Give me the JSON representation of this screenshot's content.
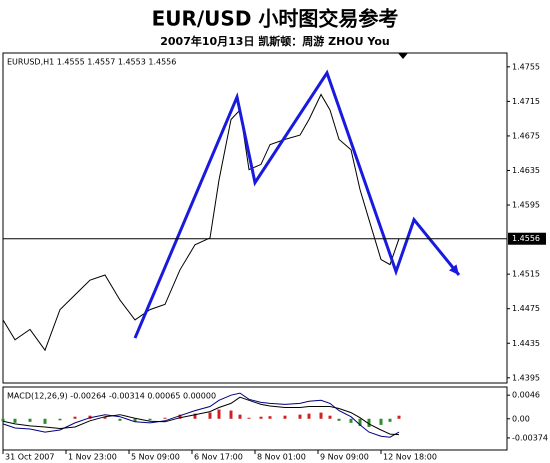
{
  "header": {
    "title": "EUR/USD 小时图交易参考",
    "subtitle": "2007年10月13日  凯斯顿：周游 ZHOU You"
  },
  "chart_data": [
    {
      "type": "line",
      "title": "EURUSD,H1  1.4555 1.4557 1.4553 1.4556",
      "x": [
        0,
        4,
        9,
        14,
        19,
        24,
        29,
        34,
        39,
        44,
        49,
        54,
        59,
        64,
        69,
        72,
        76,
        79,
        82,
        86,
        89,
        94,
        99,
        102,
        106,
        109,
        112,
        116,
        119,
        122,
        126,
        129,
        132
      ],
      "series": [
        {
          "color": "#000000",
          "values": [
            1.4462,
            1.4439,
            1.4451,
            1.4427,
            1.4474,
            1.4491,
            1.4508,
            1.4514,
            1.4485,
            1.4462,
            1.4474,
            1.448,
            1.452,
            1.4549,
            1.4557,
            1.4624,
            1.4694,
            1.4705,
            1.4636,
            1.4642,
            1.4665,
            1.4671,
            1.4676,
            1.4694,
            1.4723,
            1.4705,
            1.4671,
            1.4659,
            1.4613,
            1.4578,
            1.4532,
            1.4526,
            1.4556
          ]
        },
        {
          "color": "#1a1adf",
          "x": [
            44,
            78,
            84,
            108,
            131,
            137,
            152
          ],
          "values": [
            1.4441,
            1.472,
            1.4621,
            1.4748,
            1.4518,
            1.4578,
            1.4514
          ]
        }
      ],
      "current_price": 1.4556,
      "xlim": [
        0,
        168
      ],
      "ylim": [
        1.4389,
        1.4771
      ],
      "yticks": [
        1.4755,
        1.4715,
        1.4675,
        1.4635,
        1.4595,
        1.4515,
        1.4475,
        1.4435,
        1.4395
      ],
      "xticks": [
        {
          "value": 0,
          "label": "31 Oct 2007"
        },
        {
          "value": 21,
          "label": "1 Nov 23:00"
        },
        {
          "value": 42,
          "label": "5 Nov 09:00"
        },
        {
          "value": 63,
          "label": "6 Nov 17:00"
        },
        {
          "value": 84,
          "label": "8 Nov 01:00"
        },
        {
          "value": 105,
          "label": "9 Nov 09:00"
        },
        {
          "value": 126,
          "label": "12 Nov 18:00"
        }
      ]
    },
    {
      "type": "macd",
      "title": "MACD(12,26,9) -0.00264 -0.00314 0.00065 0.00000",
      "x": [
        0,
        4,
        9,
        14,
        19,
        24,
        29,
        34,
        39,
        44,
        49,
        54,
        59,
        64,
        69,
        72,
        76,
        79,
        82,
        86,
        89,
        94,
        99,
        102,
        106,
        109,
        112,
        116,
        119,
        122,
        126,
        129,
        132
      ],
      "series": [
        {
          "type": "bar",
          "color": "#2e8b2e",
          "color_up": "#d02020",
          "values": [
            -0.0005,
            -0.0008,
            -0.0006,
            -0.001,
            -0.0003,
            0.0004,
            0.0006,
            0.0004,
            -0.0004,
            -0.0006,
            -0.0003,
            0.0002,
            0.0008,
            0.001,
            0.0012,
            0.0018,
            0.0016,
            0.0008,
            0.0002,
            0.0004,
            0.0005,
            0.0006,
            0.0008,
            0.001,
            0.0012,
            0.0006,
            -0.0004,
            -0.0008,
            -0.0014,
            -0.0016,
            -0.0012,
            -0.0006,
            0.0006
          ]
        },
        {
          "type": "line",
          "color": "#000080",
          "values": [
            -0.001,
            -0.0018,
            -0.002,
            -0.0026,
            -0.0022,
            -0.0008,
            0.0002,
            0.0008,
            0.0004,
            -0.0006,
            -0.0008,
            -0.0004,
            0.0006,
            0.0016,
            0.0024,
            0.0036,
            0.0046,
            0.005,
            0.0038,
            0.0032,
            0.003,
            0.0028,
            0.003,
            0.0034,
            0.0036,
            0.003,
            0.0016,
            0.0004,
            -0.0012,
            -0.0026,
            -0.0034,
            -0.0036,
            -0.0026
          ]
        },
        {
          "type": "line",
          "color": "#000000",
          "values": [
            -0.0005,
            -0.001,
            -0.0014,
            -0.0016,
            -0.0019,
            -0.0016,
            -0.0004,
            0.0004,
            0.0008,
            0.0001,
            -0.0005,
            -0.0006,
            0.0002,
            0.0008,
            0.0014,
            0.0022,
            0.003,
            0.0042,
            0.0036,
            0.0028,
            0.0025,
            0.0022,
            0.0022,
            0.0024,
            0.0024,
            0.0024,
            0.002,
            0.0012,
            0.0002,
            -0.001,
            -0.0022,
            -0.003,
            -0.0031
          ]
        }
      ],
      "ylim": [
        -0.0061,
        0.0062
      ],
      "yticks": [
        0.0046,
        {
          "value": 0,
          "label": "0.00"
        },
        -0.00374
      ]
    }
  ]
}
